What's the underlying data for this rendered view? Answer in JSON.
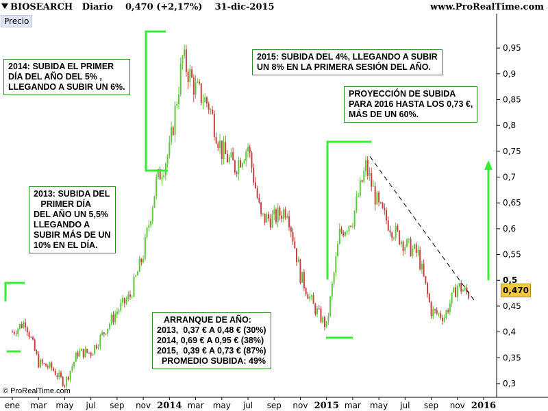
{
  "header": {
    "symbol": "BIOSEARCH",
    "period": "Diario",
    "price": "0,470",
    "change": "(+2,17%)",
    "date": "31-dic-2015",
    "source": "www.ProRealTime.com"
  },
  "panel_label": "Precio",
  "copyright": "© ProRealTime.com",
  "last_price_label": "0,470",
  "annotations": {
    "a2014": "2014: SUBIDA EL PRIMER\nDÍA DEL AÑO DEL 5% ,\nLLEGANDO A SUBIR UN 6%.",
    "a2015": "2015: SUBIDA DEL 4%, LLEGANDO A SUBIR\nUN 8% EN LA PRIMERA SESIÓN DEL AÑO.",
    "proj": "PROYECCIÓN DE SUBIDA\nPARA 2016 HASTA LOS 0,73 €,\nMÁS DE UN 60%.",
    "a2013": "2013: SUBIDA DEL\n   PRIMER DÍA\nDEL AÑO UN 5,5%\nLLEGANDO A\nSUBIR MÁS DE UN\n10% EN EL DÍA.",
    "arranque": "   ARRANQUE DE AÑO:\n2013,  0,37 € A 0,48 € (30%)\n2014, 0,69 € A 0,95 € (38%)\n2015,  0,39 € A 0,73 € (87%)\n  PROMEDIO SUBIDA: 49%"
  },
  "colors": {
    "up": "#5cc83a",
    "down": "#c84040",
    "highlight": "#33ee33",
    "frame": "#2a8a2a",
    "price_tag": "#f5c842"
  },
  "chart_data": {
    "type": "candlestick",
    "title": "BIOSEARCH Diario 0,470 (+2,17%) 31-dic-2015",
    "ylabel": "Precio",
    "ylim": [
      0.28,
      0.99
    ],
    "y_ticks": [
      "0,3",
      "0,35",
      "0,4",
      "0,45",
      "0,5",
      "0,55",
      "0,6",
      "0,65",
      "0,7",
      "0,75",
      "0,8",
      "0,85",
      "0,9",
      "0,95"
    ],
    "x_ticks": [
      "ene",
      "mar",
      "may",
      "jul",
      "sep",
      "nov",
      "2014",
      "mar",
      "may",
      "jul",
      "sep",
      "nov",
      "2015",
      "mar",
      "may",
      "jul",
      "sep",
      "nov",
      "2016"
    ],
    "x_ticks_bold": [
      "2014",
      "2015",
      "2016"
    ],
    "path_points": [
      [
        "ene 2013",
        0.4
      ],
      [
        "feb 2013",
        0.42
      ],
      [
        "mar 2013",
        0.34
      ],
      [
        "abr 2013",
        0.33
      ],
      [
        "may 2013",
        0.3
      ],
      [
        "jun 2013",
        0.36
      ],
      [
        "jul 2013",
        0.36
      ],
      [
        "ago 2013",
        0.4
      ],
      [
        "sep 2013",
        0.44
      ],
      [
        "oct 2013",
        0.47
      ],
      [
        "nov 2013",
        0.55
      ],
      [
        "dic 2013",
        0.69
      ],
      [
        "ene 2014",
        0.75
      ],
      [
        "feb 2014",
        0.93
      ],
      [
        "mar 2014",
        0.87
      ],
      [
        "abr 2014",
        0.84
      ],
      [
        "may 2014",
        0.75
      ],
      [
        "jun 2014",
        0.72
      ],
      [
        "jul 2014",
        0.76
      ],
      [
        "ago 2014",
        0.62
      ],
      [
        "sep 2014",
        0.62
      ],
      [
        "oct 2014",
        0.64
      ],
      [
        "nov 2014",
        0.51
      ],
      [
        "dic 2014",
        0.45
      ],
      [
        "ene 2015",
        0.41
      ],
      [
        "feb 2015",
        0.59
      ],
      [
        "mar 2015",
        0.62
      ],
      [
        "abr 2015",
        0.72
      ],
      [
        "may 2015",
        0.64
      ],
      [
        "jun 2015",
        0.6
      ],
      [
        "jul 2015",
        0.57
      ],
      [
        "ago 2015",
        0.55
      ],
      [
        "sep 2015",
        0.44
      ],
      [
        "oct 2015",
        0.43
      ],
      [
        "nov 2015",
        0.49
      ],
      [
        "dic 2015",
        0.47
      ]
    ],
    "trendline": {
      "from": [
        "abr 2015",
        0.74
      ],
      "to": [
        "dic 2015",
        0.46
      ],
      "style": "dashed"
    },
    "projection_arrow": {
      "from": 0.5,
      "to": 0.73
    },
    "grid": false
  }
}
